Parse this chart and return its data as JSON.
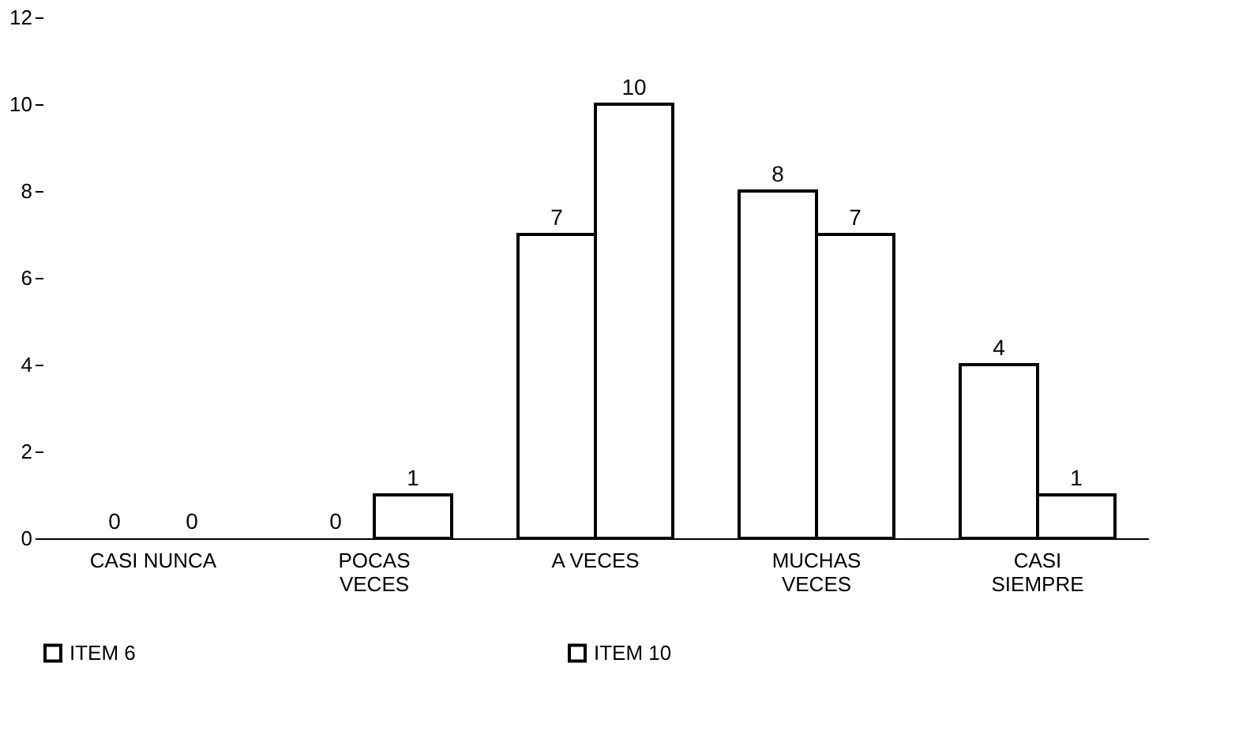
{
  "chart_data": {
    "type": "bar",
    "categories": [
      "CASI NUNCA",
      "POCAS\nVECES",
      "A VECES",
      "MUCHAS\nVECES",
      "CASI\nSIEMPRE"
    ],
    "series": [
      {
        "name": "ITEM 6",
        "color": "#ffffff",
        "values": [
          0,
          0,
          7,
          8,
          4
        ]
      },
      {
        "name": "ITEM 10",
        "color": "#ffffff",
        "values": [
          0,
          1,
          10,
          7,
          1
        ]
      }
    ],
    "ylim": [
      0,
      12
    ],
    "yticks": [
      0,
      2,
      4,
      6,
      8,
      10,
      12
    ],
    "grid": false,
    "legend": "bottom",
    "data_labels": true
  }
}
